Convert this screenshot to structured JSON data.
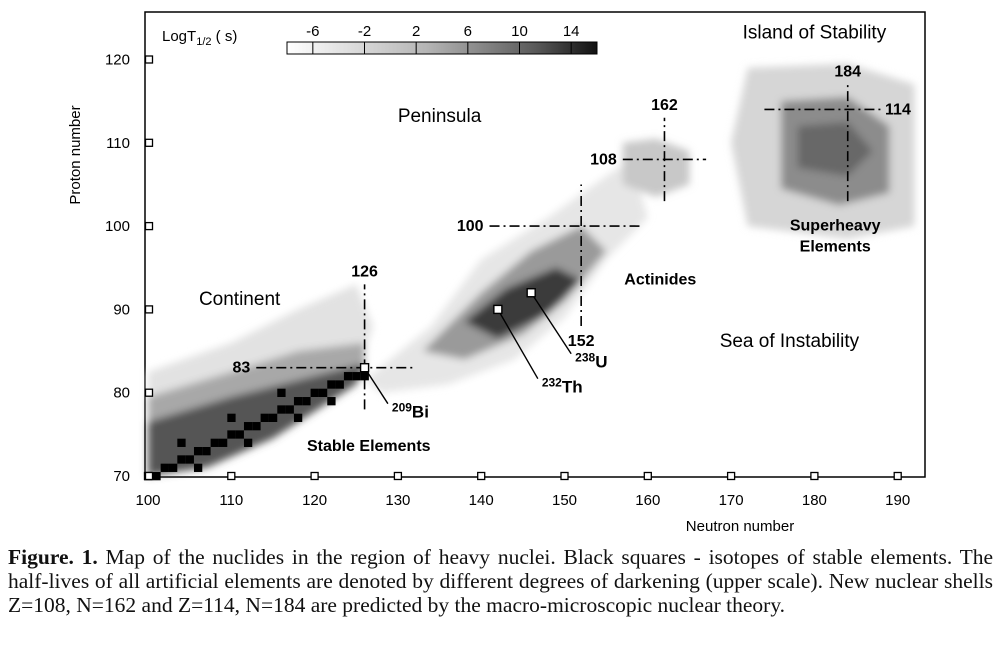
{
  "chart_data": {
    "type": "heatmap",
    "title": "",
    "xlabel": "Neutron number",
    "ylabel": "Proton number",
    "xlim": [
      100,
      190
    ],
    "ylim": [
      70,
      125
    ],
    "xticks": [
      100,
      110,
      120,
      130,
      140,
      150,
      160,
      170,
      180,
      190
    ],
    "yticks": [
      70,
      80,
      90,
      100,
      110,
      120
    ],
    "colorbar": {
      "label_main": "LogT",
      "label_sub": "1/2",
      "label_unit": " ( s)",
      "ticks": [
        -6,
        -2,
        2,
        6,
        10,
        14
      ],
      "range": [
        -8,
        16
      ]
    },
    "bands": [
      {
        "name": "light-band",
        "points": [
          [
            100,
            82.5
          ],
          [
            110,
            86
          ],
          [
            118,
            90
          ],
          [
            125,
            93
          ],
          [
            127,
            88
          ],
          [
            125,
            82
          ],
          [
            115,
            76
          ],
          [
            110,
            73.5
          ],
          [
            100,
            70
          ]
        ],
        "gray": "#e2e2e2"
      },
      {
        "name": "medium-band",
        "points": [
          [
            100,
            79.5
          ],
          [
            110,
            82.5
          ],
          [
            118,
            85
          ],
          [
            126,
            86
          ],
          [
            126,
            82
          ],
          [
            116,
            76
          ],
          [
            108,
            72.5
          ],
          [
            100,
            70
          ]
        ],
        "gray": "#a8a8a8"
      },
      {
        "name": "dark-band",
        "points": [
          [
            100,
            76.5
          ],
          [
            110,
            79.5
          ],
          [
            118,
            81.5
          ],
          [
            126,
            83.5
          ],
          [
            125,
            81
          ],
          [
            115,
            74.5
          ],
          [
            107,
            71
          ],
          [
            100,
            70
          ]
        ],
        "gray": "#555555"
      },
      {
        "name": "actinide-light",
        "points": [
          [
            126,
            81.5
          ],
          [
            134,
            88
          ],
          [
            140,
            96
          ],
          [
            148,
            101
          ],
          [
            155,
            106
          ],
          [
            158,
            108
          ],
          [
            160,
            101
          ],
          [
            155,
            96
          ],
          [
            150,
            89
          ],
          [
            144,
            84
          ],
          [
            136,
            81
          ],
          [
            128,
            80
          ]
        ],
        "gray": "#e6e6e6"
      },
      {
        "name": "actinide-medium",
        "points": [
          [
            133,
            85
          ],
          [
            140,
            92
          ],
          [
            146,
            97
          ],
          [
            152,
            100
          ],
          [
            155,
            97
          ],
          [
            150,
            91
          ],
          [
            145,
            87
          ],
          [
            138,
            84
          ]
        ],
        "gray": "#9a9a9a"
      },
      {
        "name": "actinide-dark",
        "points": [
          [
            138,
            88.5
          ],
          [
            143,
            92.5
          ],
          [
            149,
            95
          ],
          [
            152,
            93.5
          ],
          [
            148,
            89.5
          ],
          [
            142,
            86.5
          ]
        ],
        "gray": "#3a3a3a"
      },
      {
        "name": "z108-blob",
        "points": [
          [
            157,
            110
          ],
          [
            161,
            110.5
          ],
          [
            165,
            109
          ],
          [
            165,
            105
          ],
          [
            161,
            103.5
          ],
          [
            157,
            105
          ]
        ],
        "gray": "#c8c8c8"
      },
      {
        "name": "island-outer",
        "points": [
          [
            172,
            119
          ],
          [
            184,
            119.5
          ],
          [
            192,
            117
          ],
          [
            192,
            100
          ],
          [
            184,
            98.5
          ],
          [
            172,
            100
          ],
          [
            170,
            110
          ]
        ],
        "gray": "#d6d6d6"
      },
      {
        "name": "island-inner",
        "points": [
          [
            176,
            115
          ],
          [
            184,
            115.5
          ],
          [
            189,
            112
          ],
          [
            189,
            104
          ],
          [
            183,
            102.5
          ],
          [
            176,
            104.5
          ]
        ],
        "gray": "#8c8c8c"
      },
      {
        "name": "island-core",
        "points": [
          [
            178,
            112
          ],
          [
            184,
            112.5
          ],
          [
            187,
            109
          ],
          [
            184,
            106
          ],
          [
            178,
            107
          ]
        ],
        "gray": "#686868"
      }
    ],
    "stable_points": [
      [
        100,
        70
      ],
      [
        101,
        70
      ],
      [
        102,
        71
      ],
      [
        103,
        71
      ],
      [
        104,
        72
      ],
      [
        105,
        72
      ],
      [
        106,
        73
      ],
      [
        107,
        73
      ],
      [
        108,
        74
      ],
      [
        109,
        74
      ],
      [
        110,
        75
      ],
      [
        111,
        75
      ],
      [
        112,
        76
      ],
      [
        113,
        76
      ],
      [
        114,
        77
      ],
      [
        115,
        77
      ],
      [
        116,
        78
      ],
      [
        117,
        78
      ],
      [
        118,
        79
      ],
      [
        119,
        79
      ],
      [
        120,
        80
      ],
      [
        121,
        80
      ],
      [
        122,
        81
      ],
      [
        123,
        81
      ],
      [
        124,
        82
      ],
      [
        125,
        82
      ],
      [
        126,
        82
      ],
      [
        106,
        71
      ],
      [
        112,
        74
      ],
      [
        118,
        77
      ],
      [
        122,
        79
      ],
      [
        104,
        74
      ],
      [
        110,
        77
      ],
      [
        116,
        80
      ]
    ],
    "shell_lines": [
      {
        "label": "83",
        "axis": "z",
        "value": 83,
        "from": 113,
        "to": 132
      },
      {
        "label": "126",
        "axis": "n",
        "value": 126,
        "from": 78,
        "to": 93
      },
      {
        "label": "100",
        "axis": "z",
        "value": 100,
        "from": 141,
        "to": 159
      },
      {
        "label": "152",
        "axis": "n",
        "value": 152,
        "from": 88,
        "to": 105
      },
      {
        "label": "108",
        "axis": "z",
        "value": 108,
        "from": 157,
        "to": 167
      },
      {
        "label": "162",
        "axis": "n",
        "value": 162,
        "from": 103,
        "to": 113
      },
      {
        "label": "114",
        "axis": "z",
        "value": 114,
        "from": 174,
        "to": 188
      },
      {
        "label": "184",
        "axis": "n",
        "value": 184,
        "from": 103,
        "to": 117
      }
    ],
    "isotopes": [
      {
        "mass": "209",
        "symbol": "Bi",
        "n": 126,
        "z": 83,
        "label_n": 130,
        "label_z": 77
      },
      {
        "mass": "232",
        "symbol": "Th",
        "n": 142,
        "z": 90,
        "label_n": 148,
        "label_z": 80
      },
      {
        "mass": "238",
        "symbol": "U",
        "n": 146,
        "z": 92,
        "label_n": 152,
        "label_z": 83
      }
    ],
    "regions": [
      {
        "text": "Island of Stability",
        "n": 180,
        "z": 122.5,
        "bold": false
      },
      {
        "text": "Peninsula",
        "n": 135,
        "z": 112.5,
        "bold": false
      },
      {
        "text": "Continent",
        "n": 111,
        "z": 90.5,
        "bold": false
      },
      {
        "text": "Sea of Instability",
        "n": 177,
        "z": 85.5,
        "bold": false
      },
      {
        "text": "Actinides",
        "n": 161.5,
        "z": 93,
        "bold": true
      },
      {
        "text": "Stable Elements",
        "n": 126.5,
        "z": 73,
        "bold": true
      }
    ],
    "superheavy": {
      "line1": "Superheavy",
      "line2": "Elements",
      "n": 182.5,
      "z": 99.5
    }
  },
  "caption": {
    "bold": "Figure. 1.",
    "text": " Map of the nuclides in the region of heavy nuclei. Black squares - isotopes of stable elements. The half-lives of all artificial elements are denoted by different degrees of darkening (upper scale). New nuclear shells Z=108, N=162 and Z=114, N=184 are predicted by the macro-microscopic nuclear theory."
  }
}
